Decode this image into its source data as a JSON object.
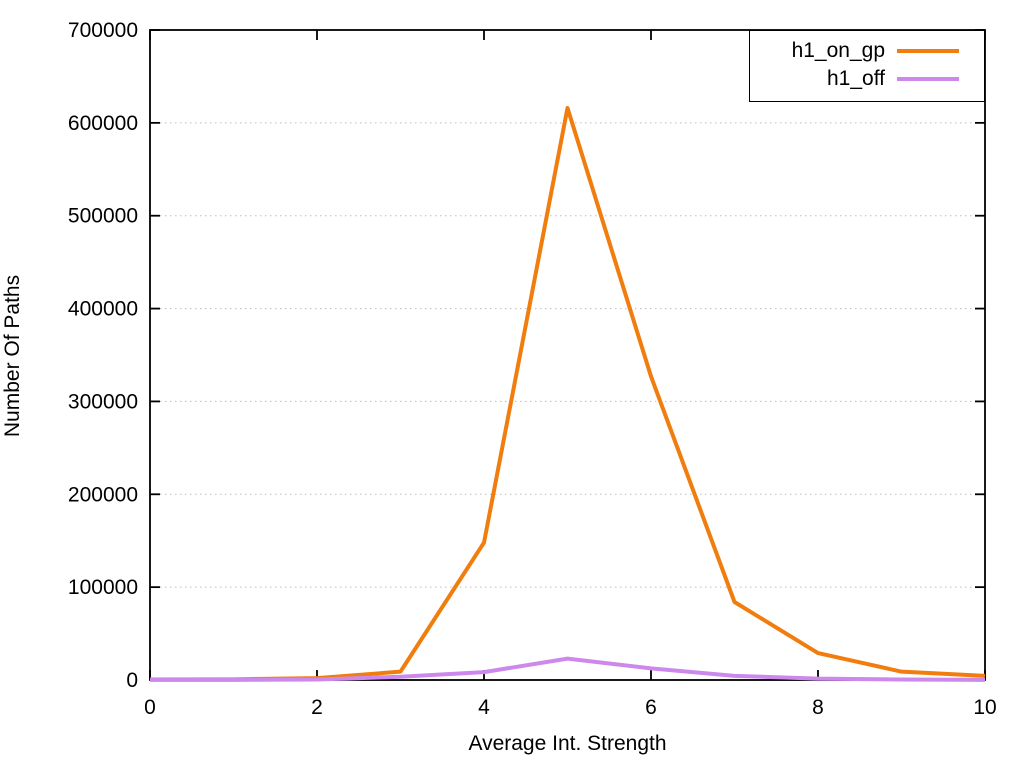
{
  "chart_data": {
    "type": "line",
    "title": "",
    "xlabel": "Average Int. Strength",
    "ylabel": "Number Of Paths",
    "x": [
      0,
      1,
      2,
      3,
      4,
      5,
      6,
      7,
      8,
      9,
      10
    ],
    "series": [
      {
        "name": "h1_on_gp",
        "color": "#f07d0e",
        "values": [
          500,
          700,
          2000,
          9000,
          148000,
          616000,
          327000,
          84000,
          29000,
          9000,
          4500
        ]
      },
      {
        "name": "h1_off",
        "color": "#cd88ec",
        "values": [
          200,
          200,
          500,
          3500,
          8500,
          23000,
          12500,
          4500,
          1500,
          500,
          200
        ]
      }
    ],
    "xlim": [
      0,
      10
    ],
    "ylim": [
      0,
      700000
    ],
    "xticks": [
      0,
      2,
      4,
      6,
      8,
      10
    ],
    "yticks": [
      0,
      100000,
      200000,
      300000,
      400000,
      500000,
      600000,
      700000
    ],
    "grid": "horizontal-dotted",
    "grid_color": "#bdbdbd",
    "border_color": "#000000",
    "legend_position": "top-right"
  }
}
